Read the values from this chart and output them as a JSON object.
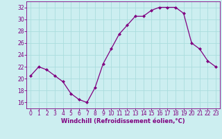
{
  "x": [
    0,
    1,
    2,
    3,
    4,
    5,
    6,
    7,
    8,
    9,
    10,
    11,
    12,
    13,
    14,
    15,
    16,
    17,
    18,
    19,
    20,
    21,
    22,
    23
  ],
  "y": [
    20.5,
    22.0,
    21.5,
    20.5,
    19.5,
    17.5,
    16.5,
    16.0,
    18.5,
    22.5,
    25.0,
    27.5,
    29.0,
    30.5,
    30.5,
    31.5,
    32.0,
    32.0,
    32.0,
    31.0,
    26.0,
    25.0,
    23.0,
    22.0
  ],
  "line_color": "#800080",
  "marker": "D",
  "marker_size": 2.0,
  "bg_color": "#cceef0",
  "grid_color": "#aadddd",
  "xlabel": "Windchill (Refroidissement éolien,°C)",
  "xlabel_color": "#800080",
  "tick_color": "#800080",
  "spine_color": "#800080",
  "ylim": [
    15,
    33
  ],
  "xlim": [
    -0.5,
    23.5
  ],
  "yticks": [
    16,
    18,
    20,
    22,
    24,
    26,
    28,
    30,
    32
  ],
  "xticks": [
    0,
    1,
    2,
    3,
    4,
    5,
    6,
    7,
    8,
    9,
    10,
    11,
    12,
    13,
    14,
    15,
    16,
    17,
    18,
    19,
    20,
    21,
    22,
    23
  ],
  "tick_fontsize": 5.5,
  "xlabel_fontsize": 6.0
}
